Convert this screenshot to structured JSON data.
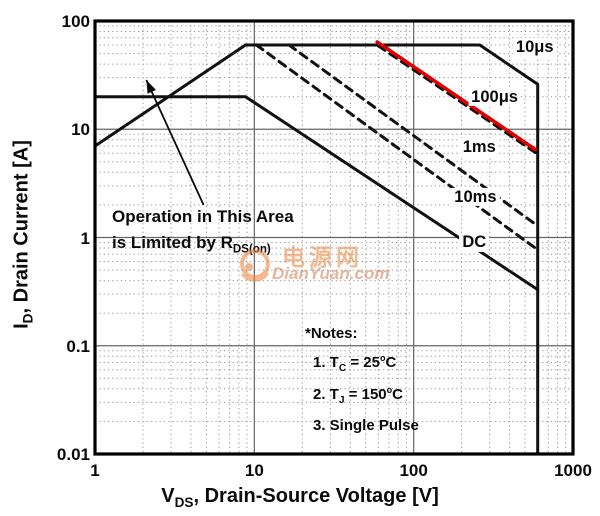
{
  "axes": {
    "x": {
      "label_pre": "V",
      "label_sub": "DS",
      "label_post": ", Drain-Source Voltage [V]",
      "ticks": [
        "1",
        "10",
        "100",
        "1000"
      ],
      "scale": "log",
      "min": 1,
      "max": 1000
    },
    "y": {
      "label_pre": "I",
      "label_sub": "D",
      "label_post": ", Drain Current [A]",
      "ticks": [
        "100",
        "10",
        "1",
        "0.1",
        "0.01"
      ],
      "scale": "log",
      "min": 0.01,
      "max": 100
    }
  },
  "annotation": {
    "line1": "Operation in This Area",
    "line2_pre": "is Limited by R",
    "line2_sub": "DS(on)"
  },
  "notes": {
    "header": "*Notes:",
    "items": [
      [
        {
          "t": "1. T"
        },
        {
          "t": "C",
          "sub": true
        },
        {
          "t": " = 25"
        },
        {
          "t": "o",
          "sup": true
        },
        {
          "t": "C"
        }
      ],
      [
        {
          "t": "2. T"
        },
        {
          "t": "J",
          "sub": true
        },
        {
          "t": " = 150"
        },
        {
          "t": "o",
          "sup": true
        },
        {
          "t": "C"
        }
      ],
      [
        {
          "t": "3. Single Pulse"
        }
      ]
    ]
  },
  "watermark": {
    "cn": "电源网",
    "en": "DianYuan.com",
    "color": "#e8813a"
  },
  "colors": {
    "line": "#111111",
    "highlight_red": "#e00000",
    "grid_major": "#666666",
    "grid_minor": "#9a9a9a",
    "border": "#000000"
  },
  "chart_data": {
    "type": "line",
    "title": "Safe Operating Area",
    "xlabel": "VDS, Drain-Source Voltage [V]",
    "ylabel": "ID, Drain Current [A]",
    "xscale": "log",
    "yscale": "log",
    "xlim": [
      1,
      1000
    ],
    "ylim": [
      0.01,
      100
    ],
    "grid": true,
    "series": [
      {
        "name": "rds_on_limit",
        "style": "solid",
        "color": "#111111",
        "points": [
          [
            1,
            7
          ],
          [
            8.8,
            60
          ]
        ]
      },
      {
        "name": "pulse_10us",
        "label": "10μs",
        "style": "solid",
        "color": "#111111",
        "points": [
          [
            8.8,
            60
          ],
          [
            260,
            60
          ],
          [
            600,
            26
          ],
          [
            600,
            0.0102
          ]
        ]
      },
      {
        "name": "pulse_100us",
        "label": "100μs",
        "style": "dashed",
        "color": "#111111",
        "points": [
          [
            60,
            59
          ],
          [
            600,
            5.9
          ]
        ]
      },
      {
        "name": "pulse_100us_red_highlight",
        "style": "solid",
        "color": "#e00000",
        "points": [
          [
            59,
            64
          ],
          [
            580,
            6.5
          ]
        ]
      },
      {
        "name": "pulse_1ms",
        "label": "1ms",
        "style": "dashed",
        "color": "#111111",
        "points": [
          [
            16.5,
            60
          ],
          [
            600,
            1.28
          ]
        ]
      },
      {
        "name": "pulse_10ms",
        "label": "10ms",
        "style": "dashed",
        "color": "#111111",
        "points": [
          [
            10.3,
            60
          ],
          [
            600,
            0.77
          ]
        ]
      },
      {
        "name": "dc",
        "label": "DC",
        "style": "solid",
        "color": "#111111",
        "points": [
          [
            1,
            20
          ],
          [
            8.8,
            20
          ],
          [
            600,
            0.33
          ]
        ]
      }
    ],
    "curve_labels": [
      {
        "text": "10μs",
        "v": 575,
        "i": 57
      },
      {
        "text": "100μs",
        "v": 322,
        "i": 20
      },
      {
        "text": "1ms",
        "v": 258,
        "i": 6.8
      },
      {
        "text": "10ms",
        "v": 244,
        "i": 2.35
      },
      {
        "text": "DC",
        "v": 240,
        "i": 0.9
      }
    ],
    "arrow": {
      "from_v": 4.8,
      "from_i": 2.0,
      "to_v": 2.1,
      "to_i": 28.5
    }
  }
}
